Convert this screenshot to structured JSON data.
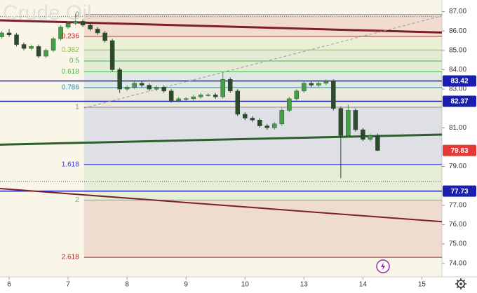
{
  "chart_data": {
    "type": "candlestick",
    "title": "Crude Oil",
    "background": "#f9f5e7",
    "up_color": "#43a047",
    "down_color": "#2e4a2e",
    "xlim": [
      -0.155,
      7.34
    ],
    "xticks": [
      {
        "value": 0,
        "label": "6"
      },
      {
        "value": 1,
        "label": "7"
      },
      {
        "value": 2,
        "label": "8"
      },
      {
        "value": 3,
        "label": "9"
      },
      {
        "value": 4,
        "label": "10"
      },
      {
        "value": 5,
        "label": "13"
      },
      {
        "value": 6,
        "label": "14"
      },
      {
        "value": 7,
        "label": "15"
      }
    ],
    "ylim": [
      73.3,
      87.6
    ],
    "yticks": [
      {
        "value": 87,
        "label": "87.00"
      },
      {
        "value": 86,
        "label": "86.00"
      },
      {
        "value": 85,
        "label": "85.00"
      },
      {
        "value": 84,
        "label": "84.00"
      },
      {
        "value": 83,
        "label": "83.00"
      },
      {
        "value": 81,
        "label": "81.00"
      },
      {
        "value": 79,
        "label": "79.00"
      },
      {
        "value": 77,
        "label": "77.00"
      },
      {
        "value": 76,
        "label": "76.00"
      },
      {
        "value": 75,
        "label": "75.00"
      },
      {
        "value": 74,
        "label": "74.00"
      }
    ],
    "candles": {
      "x": [
        -0.125,
        0,
        0.125,
        0.25,
        0.375,
        0.5,
        0.625,
        0.75,
        0.875,
        1,
        1.125,
        1.25,
        1.375,
        1.5,
        1.625,
        1.75,
        1.875,
        2,
        2.125,
        2.25,
        2.375,
        2.5,
        2.625,
        2.75,
        2.875,
        3,
        3.125,
        3.25,
        3.375,
        3.5,
        3.625,
        3.75,
        3.875,
        4,
        4.125,
        4.25,
        4.375,
        4.5,
        4.625,
        4.75,
        4.875,
        5,
        5.125,
        5.25,
        5.375,
        5.5,
        5.625,
        5.75,
        5.875,
        6,
        6.125,
        6.25
      ],
      "open": [
        85.7,
        85.9,
        85.8,
        85.3,
        85.1,
        85.2,
        84.7,
        85.0,
        85.6,
        86.2,
        86.4,
        86.5,
        86.3,
        86.1,
        85.9,
        85.5,
        84.0,
        83.0,
        83.1,
        83.3,
        83.2,
        83.0,
        83.1,
        82.9,
        82.4,
        82.5,
        82.5,
        82.6,
        82.7,
        82.7,
        82.6,
        83.5,
        82.9,
        81.7,
        81.5,
        81.4,
        81.1,
        81.0,
        81.2,
        81.9,
        82.5,
        82.9,
        83.3,
        83.2,
        83.3,
        83.4,
        82.0,
        80.6,
        81.9,
        80.9,
        80.4,
        80.6
      ],
      "high": [
        86.0,
        86.1,
        85.9,
        85.4,
        85.3,
        85.3,
        85.1,
        85.7,
        86.3,
        86.5,
        86.9,
        86.6,
        86.4,
        86.2,
        86.0,
        85.6,
        84.1,
        83.2,
        83.4,
        83.4,
        83.3,
        83.2,
        83.2,
        83.0,
        82.6,
        82.6,
        82.7,
        82.8,
        82.8,
        82.8,
        83.9,
        83.6,
        83.0,
        81.8,
        81.6,
        81.5,
        81.2,
        81.3,
        82.0,
        82.6,
        83.0,
        83.4,
        83.4,
        83.4,
        83.5,
        83.5,
        82.1,
        82.2,
        82.0,
        81.0,
        80.7,
        80.7
      ],
      "low": [
        85.6,
        85.7,
        85.2,
        85.0,
        85.0,
        84.6,
        84.6,
        84.9,
        85.5,
        86.1,
        86.3,
        86.2,
        86.0,
        85.8,
        85.4,
        83.9,
        82.8,
        82.9,
        83.0,
        83.1,
        82.9,
        82.9,
        82.8,
        82.3,
        82.3,
        82.4,
        82.4,
        82.5,
        82.6,
        82.5,
        82.5,
        82.8,
        81.6,
        81.4,
        81.3,
        81.0,
        80.9,
        80.9,
        81.1,
        81.8,
        82.4,
        82.8,
        83.1,
        83.1,
        83.2,
        81.9,
        78.4,
        80.5,
        80.8,
        80.3,
        80.3,
        79.8
      ],
      "close": [
        85.9,
        85.8,
        85.3,
        85.1,
        85.2,
        84.7,
        85.0,
        85.6,
        86.2,
        86.4,
        86.5,
        86.3,
        86.1,
        85.9,
        85.5,
        84.0,
        83.0,
        83.1,
        83.3,
        83.2,
        83.0,
        83.1,
        82.9,
        82.4,
        82.5,
        82.5,
        82.6,
        82.7,
        82.7,
        82.6,
        83.5,
        82.9,
        81.7,
        81.5,
        81.4,
        81.1,
        81.0,
        81.2,
        81.9,
        82.5,
        82.9,
        83.3,
        83.2,
        83.3,
        83.4,
        82.0,
        80.6,
        81.9,
        80.9,
        80.4,
        80.6,
        79.83
      ]
    },
    "fib_start_x": 1.27,
    "fib_levels": [
      {
        "ratio": 0,
        "price": 86.85,
        "color": "#888888"
      },
      {
        "ratio": 0.236,
        "price": 85.72,
        "color": "#c62828"
      },
      {
        "ratio": 0.382,
        "price": 85.02,
        "color": "#8bc34a"
      },
      {
        "ratio": 0.5,
        "price": 84.45,
        "color": "#4caf50"
      },
      {
        "ratio": 0.618,
        "price": 83.89,
        "color": "#4caf50"
      },
      {
        "ratio": 0.786,
        "price": 83.08,
        "color": "#2e8fb3"
      },
      {
        "ratio": 1,
        "price": 82.06,
        "color": "#888888"
      },
      {
        "ratio": 1.618,
        "price": 79.1,
        "color": "#2d3ee0"
      },
      {
        "ratio": 2,
        "price": 77.27,
        "color": "#66bb6a"
      },
      {
        "ratio": 2.618,
        "price": 74.31,
        "color": "#a12828"
      }
    ],
    "horizontal_lines": [
      {
        "price": 83.42,
        "color": "#1b1fb0"
      },
      {
        "price": 82.37,
        "color": "#1b1fb0"
      },
      {
        "price": 77.73,
        "color": "#1b1fb0"
      }
    ],
    "dotted_levels": [
      86.74,
      78.23
    ],
    "trendlines": [
      {
        "x": [
          -0.155,
          7.34
        ],
        "y": [
          86.55,
          85.92
        ],
        "color": "#7b1f2e",
        "width": 3,
        "dashed": false
      },
      {
        "x": [
          -0.155,
          7.34
        ],
        "y": [
          80.13,
          80.65
        ],
        "color": "#2e5e2e",
        "width": 3,
        "dashed": false
      },
      {
        "x": [
          -0.155,
          7.34
        ],
        "y": [
          77.86,
          76.15
        ],
        "color": "#7b1f2e",
        "width": 2,
        "dashed": false
      },
      {
        "x": [
          1.27,
          7.34
        ],
        "y": [
          82.02,
          86.78
        ],
        "color": "#999999",
        "width": 1,
        "dashed": true
      }
    ],
    "price_labels": [
      {
        "price": 83.42,
        "color": "#1b1fb0"
      },
      {
        "price": 82.37,
        "color": "#1b1fb0"
      },
      {
        "price": 79.83,
        "color": "#e53935"
      },
      {
        "price": 77.73,
        "color": "#1b1fb0"
      }
    ]
  }
}
